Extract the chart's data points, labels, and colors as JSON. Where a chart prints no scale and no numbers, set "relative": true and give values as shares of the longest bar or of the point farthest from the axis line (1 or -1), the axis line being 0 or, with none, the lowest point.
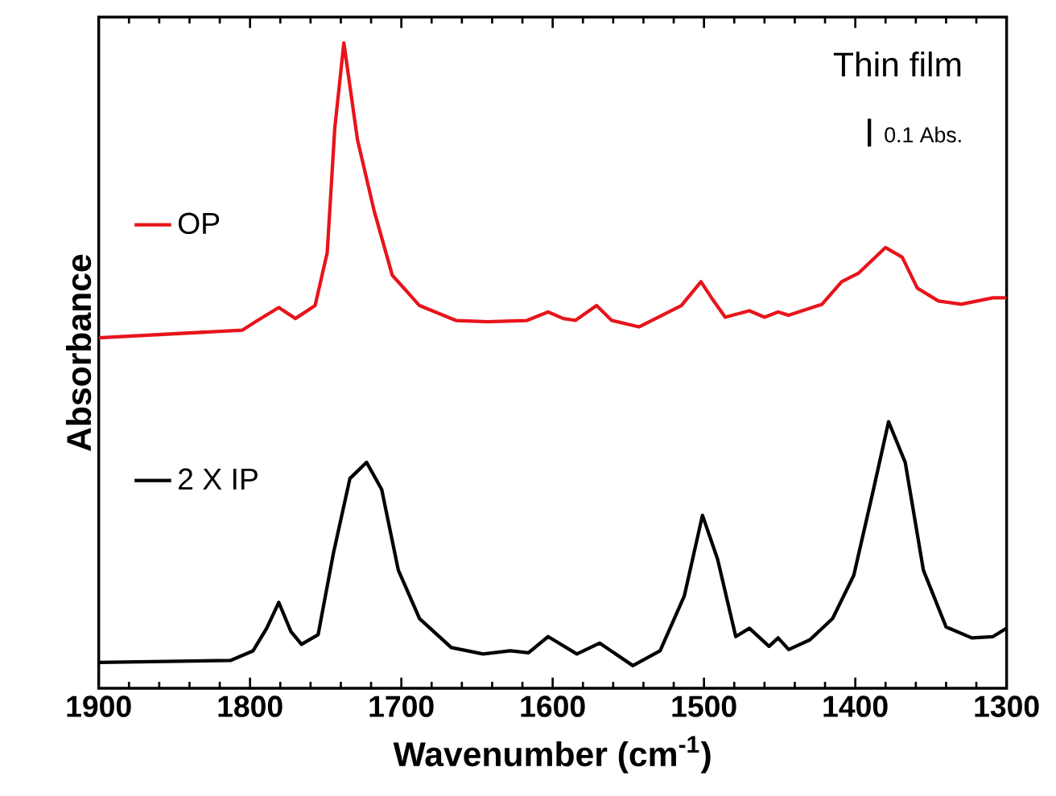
{
  "chart_data": {
    "type": "line",
    "xlabel": "Wavenumber (cm$^{-1}$)",
    "ylabel": "Absorbance",
    "relative": true,
    "xlim": [
      1900,
      1300
    ],
    "xticks": [
      1900,
      1800,
      1700,
      1600,
      1500,
      1400,
      1300
    ],
    "tick_labels": "x",
    "legend": "left",
    "grid": false,
    "line_style": "solid",
    "marker": "none",
    "annotations": [
      "Thin film",
      "0.1 Abs."
    ],
    "series": [
      {
        "name": "OP",
        "color": "#e8141b",
        "x": [
          1900,
          1805,
          1795,
          1781,
          1770,
          1757,
          1749,
          1744,
          1738,
          1729,
          1718,
          1706,
          1688,
          1664,
          1643,
          1617,
          1603,
          1593,
          1585,
          1571,
          1561,
          1543,
          1515,
          1502,
          1495,
          1486,
          1470,
          1460,
          1451,
          1444,
          1422,
          1409,
          1398,
          1380,
          1369,
          1359,
          1345,
          1330,
          1309,
          1300
        ],
        "values": [
          0.543,
          0.555,
          0.57,
          0.59,
          0.573,
          0.593,
          0.675,
          0.868,
          1.0,
          0.85,
          0.74,
          0.64,
          0.593,
          0.57,
          0.568,
          0.57,
          0.583,
          0.573,
          0.57,
          0.593,
          0.57,
          0.56,
          0.593,
          0.63,
          0.605,
          0.575,
          0.585,
          0.575,
          0.583,
          0.578,
          0.595,
          0.63,
          0.643,
          0.683,
          0.668,
          0.62,
          0.6,
          0.595,
          0.605,
          0.605
        ]
      },
      {
        "name": "2 X IP",
        "color": "#000000",
        "x": [
          1900,
          1813,
          1798,
          1789,
          1781,
          1773,
          1766,
          1755,
          1745,
          1734,
          1723,
          1713,
          1702,
          1688,
          1667,
          1646,
          1628,
          1616,
          1603,
          1584,
          1569,
          1547,
          1529,
          1513,
          1501,
          1491,
          1479,
          1470,
          1457,
          1451,
          1444,
          1430,
          1415,
          1401,
          1388,
          1378,
          1367,
          1355,
          1340,
          1323,
          1309,
          1300
        ],
        "values": [
          0.04,
          0.043,
          0.058,
          0.093,
          0.133,
          0.088,
          0.068,
          0.083,
          0.208,
          0.325,
          0.35,
          0.308,
          0.183,
          0.108,
          0.063,
          0.053,
          0.058,
          0.055,
          0.08,
          0.053,
          0.07,
          0.035,
          0.058,
          0.143,
          0.268,
          0.2,
          0.08,
          0.093,
          0.065,
          0.078,
          0.06,
          0.075,
          0.108,
          0.175,
          0.308,
          0.413,
          0.35,
          0.183,
          0.095,
          0.078,
          0.08,
          0.093
        ]
      }
    ]
  }
}
